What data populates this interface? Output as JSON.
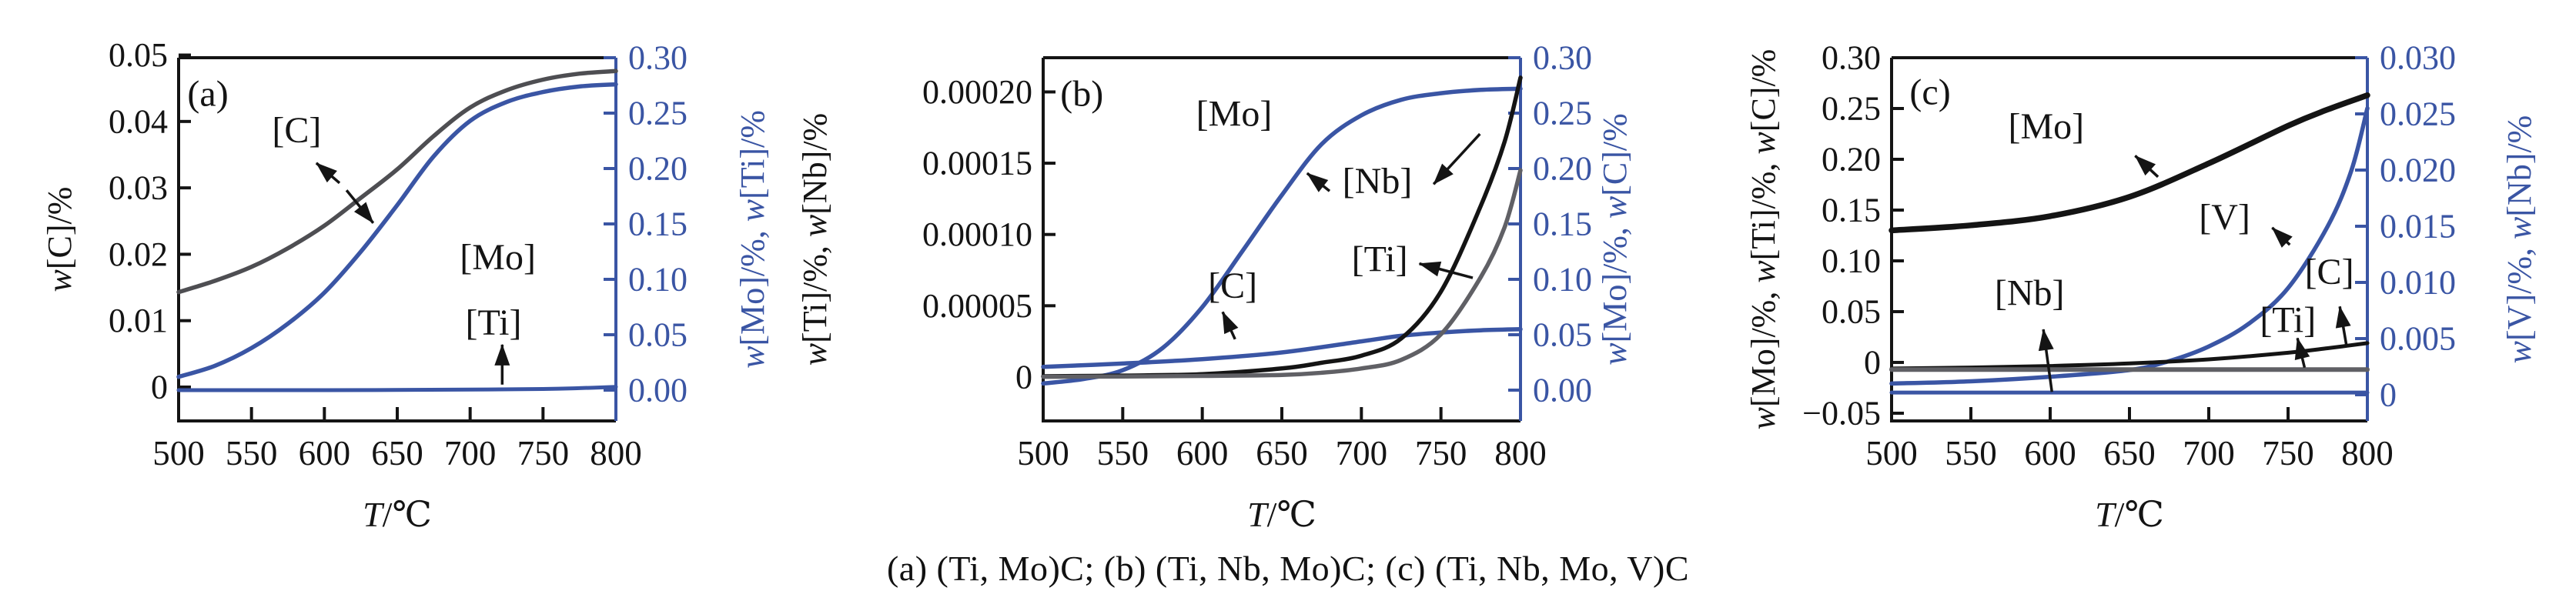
{
  "caption": "(a) (Ti, Mo)C; (b) (Ti, Nb, Mo)C; (c) (Ti, Nb, Mo, V)C",
  "colors": {
    "blue": "#3a55a4",
    "black": "#141414",
    "darkgray": "#4e4e52",
    "gray": "#606065"
  },
  "chart_data": [
    {
      "panel": "(a)",
      "key": "a",
      "type": "line",
      "x": {
        "label": "T/℃",
        "range": [
          500,
          800
        ],
        "ticks": [
          500,
          550,
          600,
          650,
          700,
          750,
          800
        ],
        "tick_labels": [
          "500",
          "550",
          "600",
          "650",
          "700",
          "750",
          "800"
        ]
      },
      "left_axis": {
        "label": "w[C]/%",
        "color": "black",
        "range": [
          -0.0051,
          0.0496
        ],
        "ticks": [
          0,
          0.01,
          0.02,
          0.03,
          0.04,
          0.05
        ],
        "tick_labels": [
          "0",
          "0.01",
          "0.02",
          "0.03",
          "0.04",
          "0.05"
        ]
      },
      "right_axis": {
        "label": "w[Mo]/%, w[Ti]/%",
        "color": "blue",
        "range": [
          -0.0278,
          0.3
        ],
        "ticks": [
          0,
          0.05,
          0.1,
          0.15,
          0.2,
          0.25,
          0.3
        ],
        "tick_labels": [
          "0.00",
          "0.05",
          "0.10",
          "0.15",
          "0.20",
          "0.25",
          "0.30"
        ]
      },
      "series": [
        {
          "name": "[C]",
          "axis": "left",
          "color": "darkgray",
          "width": 5.5,
          "points": [
            [
              500,
              0.0143
            ],
            [
              525,
              0.016
            ],
            [
              550,
              0.0181
            ],
            [
              575,
              0.0209
            ],
            [
              600,
              0.0243
            ],
            [
              625,
              0.0285
            ],
            [
              650,
              0.0328
            ],
            [
              675,
              0.0378
            ],
            [
              700,
              0.0421
            ],
            [
              725,
              0.0447
            ],
            [
              750,
              0.0463
            ],
            [
              775,
              0.0472
            ],
            [
              800,
              0.0476
            ]
          ]
        },
        {
          "name": "[Mo]",
          "axis": "right",
          "color": "blue",
          "width": 5.5,
          "points": [
            [
              500,
              0.012
            ],
            [
              525,
              0.022
            ],
            [
              550,
              0.038
            ],
            [
              575,
              0.06
            ],
            [
              600,
              0.088
            ],
            [
              625,
              0.125
            ],
            [
              650,
              0.167
            ],
            [
              675,
              0.211
            ],
            [
              700,
              0.243
            ],
            [
              725,
              0.26
            ],
            [
              750,
              0.269
            ],
            [
              775,
              0.274
            ],
            [
              800,
              0.276
            ]
          ]
        },
        {
          "name": "[Ti]",
          "axis": "right",
          "color": "blue",
          "width": 5,
          "points": [
            [
              500,
              0.0
            ],
            [
              600,
              0.0
            ],
            [
              700,
              0.0005
            ],
            [
              750,
              0.001
            ],
            [
              775,
              0.0018
            ],
            [
              800,
              0.003
            ]
          ]
        }
      ],
      "annotations": [
        {
          "text": "(a)",
          "fx": 0.067,
          "fy": 0.1
        },
        {
          "text": "[C]",
          "fx": 0.27,
          "fy": 0.2,
          "arrow": {
            "from": [
              0.368,
              0.345
            ],
            "to": [
              0.315,
              0.29
            ]
          }
        },
        {
          "text": "[Mo]",
          "fx": 0.73,
          "fy": 0.55,
          "arrow": {
            "from": [
              0.384,
              0.365
            ],
            "to": [
              0.445,
              0.455
            ]
          }
        },
        {
          "text": "[Ti]",
          "fx": 0.72,
          "fy": 0.73,
          "arrow": {
            "from": [
              0.74,
              0.9
            ],
            "to": [
              0.74,
              0.79
            ]
          }
        }
      ]
    },
    {
      "panel": "(b)",
      "key": "b",
      "type": "line",
      "x": {
        "label": "T/℃",
        "range": [
          500,
          800
        ],
        "ticks": [
          500,
          550,
          600,
          650,
          700,
          750,
          800
        ],
        "tick_labels": [
          "500",
          "550",
          "600",
          "650",
          "700",
          "750",
          "800"
        ]
      },
      "left_axis": {
        "label": "w[Ti]/%, w[Nb]/%",
        "color": "black",
        "range": [
          -3.08e-05,
          0.000224
        ],
        "ticks": [
          0,
          5e-05,
          0.0001,
          0.00015,
          0.0002
        ],
        "tick_labels": [
          "0",
          "0.00005",
          "0.00010",
          "0.00015",
          "0.00020"
        ]
      },
      "right_axis": {
        "label": "w[Mo]/%, w[C]/%",
        "color": "blue",
        "range": [
          -0.0278,
          0.3
        ],
        "ticks": [
          0,
          0.05,
          0.1,
          0.15,
          0.2,
          0.25,
          0.3
        ],
        "tick_labels": [
          "0.00",
          "0.05",
          "0.10",
          "0.15",
          "0.20",
          "0.25",
          "0.30"
        ]
      },
      "series": [
        {
          "name": "[Mo]",
          "axis": "right",
          "color": "blue",
          "width": 5.5,
          "points": [
            [
              500,
              0.006
            ],
            [
              525,
              0.01
            ],
            [
              550,
              0.018
            ],
            [
              575,
              0.038
            ],
            [
              600,
              0.075
            ],
            [
              625,
              0.125
            ],
            [
              650,
              0.176
            ],
            [
              675,
              0.222
            ],
            [
              700,
              0.248
            ],
            [
              725,
              0.262
            ],
            [
              750,
              0.268
            ],
            [
              775,
              0.271
            ],
            [
              800,
              0.272
            ]
          ]
        },
        {
          "name": "[C]",
          "axis": "right",
          "color": "blue",
          "width": 5.5,
          "points": [
            [
              500,
              0.021
            ],
            [
              550,
              0.024
            ],
            [
              600,
              0.028
            ],
            [
              650,
              0.034
            ],
            [
              700,
              0.044
            ],
            [
              725,
              0.049
            ],
            [
              750,
              0.052
            ],
            [
              775,
              0.054
            ],
            [
              800,
              0.055
            ]
          ]
        },
        {
          "name": "[Nb]",
          "axis": "left",
          "color": "black",
          "width": 5.5,
          "points": [
            [
              500,
              5e-07
            ],
            [
              550,
              1e-06
            ],
            [
              600,
              2e-06
            ],
            [
              650,
              6e-06
            ],
            [
              675,
              1e-05
            ],
            [
              700,
              1.5e-05
            ],
            [
              725,
              2.7e-05
            ],
            [
              750,
              6e-05
            ],
            [
              775,
              0.00012
            ],
            [
              790,
              0.000165
            ],
            [
              800,
              0.00021
            ]
          ]
        },
        {
          "name": "[Ti]",
          "axis": "left",
          "color": "gray",
          "width": 5.5,
          "points": [
            [
              500,
              2e-07
            ],
            [
              550,
              4e-07
            ],
            [
              600,
              8e-07
            ],
            [
              650,
              1.5e-06
            ],
            [
              675,
              3e-06
            ],
            [
              700,
              6e-06
            ],
            [
              725,
              1.2e-05
            ],
            [
              750,
              3e-05
            ],
            [
              775,
              7e-05
            ],
            [
              790,
              0.000105
            ],
            [
              800,
              0.000145
            ]
          ]
        }
      ],
      "annotations": [
        {
          "text": "(b)",
          "fx": 0.081,
          "fy": 0.1
        },
        {
          "text": "[Mo]",
          "fx": 0.4,
          "fy": 0.155,
          "arrow": {
            "from": [
              0.6,
              0.367
            ],
            "to": [
              0.553,
              0.318
            ]
          }
        },
        {
          "text": "[Nb]",
          "fx": 0.7,
          "fy": 0.34,
          "arrow": {
            "from": [
              0.915,
              0.21
            ],
            "to": [
              0.818,
              0.348
            ]
          }
        },
        {
          "text": "[Ti]",
          "fx": 0.705,
          "fy": 0.555,
          "arrow": {
            "from": [
              0.9,
              0.606
            ],
            "to": [
              0.788,
              0.567
            ]
          }
        },
        {
          "text": "[C]",
          "fx": 0.397,
          "fy": 0.628,
          "arrow": {
            "from": [
              0.402,
              0.775
            ],
            "to": [
              0.376,
              0.7
            ]
          }
        }
      ]
    },
    {
      "panel": "(c)",
      "key": "c",
      "type": "line",
      "x": {
        "label": "T/℃",
        "range": [
          500,
          800
        ],
        "ticks": [
          500,
          550,
          600,
          650,
          700,
          750,
          800
        ],
        "tick_labels": [
          "500",
          "550",
          "600",
          "650",
          "700",
          "750",
          "800"
        ]
      },
      "left_axis": {
        "label": "w[Mo]/%, w[Ti]/%, w[C]/%",
        "color": "black",
        "range": [
          -0.0576,
          0.3
        ],
        "ticks": [
          -0.05,
          0,
          0.05,
          0.1,
          0.15,
          0.2,
          0.25,
          0.3
        ],
        "tick_labels": [
          "−0.05",
          "0",
          "0.05",
          "0.10",
          "0.15",
          "0.20",
          "0.25",
          "0.30"
        ]
      },
      "right_axis": {
        "label": "w[V]/%, w[Nb]/%",
        "color": "blue",
        "range": [
          -0.00233,
          0.03
        ],
        "ticks": [
          0,
          0.005,
          0.01,
          0.015,
          0.02,
          0.025,
          0.03
        ],
        "tick_labels": [
          "0",
          "0.005",
          "0.010",
          "0.015",
          "0.020",
          "0.025",
          "0.030"
        ]
      },
      "series": [
        {
          "name": "[Mo]",
          "axis": "left",
          "color": "black",
          "width": 7.5,
          "points": [
            [
              500,
              0.13
            ],
            [
              550,
              0.135
            ],
            [
              600,
              0.144
            ],
            [
              650,
              0.163
            ],
            [
              700,
              0.196
            ],
            [
              750,
              0.233
            ],
            [
              775,
              0.249
            ],
            [
              800,
              0.263
            ]
          ]
        },
        {
          "name": "[V]",
          "axis": "right",
          "color": "blue",
          "width": 5.5,
          "points": [
            [
              500,
              0.001
            ],
            [
              550,
              0.0012
            ],
            [
              600,
              0.0016
            ],
            [
              650,
              0.0022
            ],
            [
              675,
              0.003
            ],
            [
              700,
              0.0043
            ],
            [
              725,
              0.0063
            ],
            [
              750,
              0.0095
            ],
            [
              775,
              0.015
            ],
            [
              790,
              0.02
            ],
            [
              800,
              0.0255
            ]
          ]
        },
        {
          "name": "[C]",
          "axis": "left",
          "color": "black",
          "width": 5,
          "points": [
            [
              500,
              -0.006
            ],
            [
              550,
              -0.005
            ],
            [
              600,
              -0.0035
            ],
            [
              650,
              -0.001
            ],
            [
              700,
              0.003
            ],
            [
              750,
              0.0095
            ],
            [
              775,
              0.014
            ],
            [
              800,
              0.019
            ]
          ]
        },
        {
          "name": "[Ti]",
          "axis": "left",
          "color": "gray",
          "width": 6,
          "points": [
            [
              500,
              -0.007
            ],
            [
              650,
              -0.007
            ],
            [
              800,
              -0.007
            ]
          ]
        },
        {
          "name": "[Nb]",
          "axis": "right",
          "color": "blue",
          "width": 5,
          "points": [
            [
              500,
              0.0002
            ],
            [
              650,
              0.0002
            ],
            [
              800,
              0.0002
            ]
          ]
        }
      ],
      "annotations": [
        {
          "text": "(c)",
          "fx": 0.081,
          "fy": 0.095
        },
        {
          "text": "[Mo]",
          "fx": 0.325,
          "fy": 0.19,
          "arrow": {
            "from": [
              0.56,
              0.328
            ],
            "to": [
              0.512,
              0.27
            ]
          }
        },
        {
          "text": "[Nb]",
          "fx": 0.29,
          "fy": 0.648,
          "arrow": {
            "from": [
              0.337,
              0.92
            ],
            "to": [
              0.319,
              0.748
            ]
          }
        },
        {
          "text": "[V]",
          "fx": 0.7,
          "fy": 0.44,
          "arrow": {
            "from": [
              0.837,
              0.515
            ],
            "to": [
              0.8,
              0.468
            ]
          }
        },
        {
          "text": "[C]",
          "fx": 0.92,
          "fy": 0.59,
          "arrow": {
            "from": [
              0.956,
              0.792
            ],
            "to": [
              0.942,
              0.685
            ]
          }
        },
        {
          "text": "[Ti]",
          "fx": 0.833,
          "fy": 0.722,
          "arrow": {
            "from": [
              0.868,
              0.853
            ],
            "to": [
              0.853,
              0.772
            ]
          }
        }
      ]
    }
  ]
}
